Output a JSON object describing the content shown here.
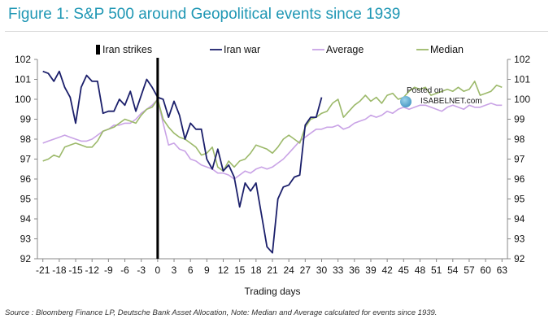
{
  "header": {
    "title": "Figure 1: S&P 500 around Geopolitical events since 1939"
  },
  "footer": {
    "source": "Source : Bloomberg Finance LP, Deutsche Bank Asset Allocation, Note: Median and Average calculated for events since 1939."
  },
  "watermark": {
    "line1": "Posted on",
    "line2": "ISABELNET.com"
  },
  "chart_data": {
    "type": "line",
    "title": "Figure 1: S&P 500 around Geopolitical events since 1939",
    "xlabel": "Trading days",
    "ylabel": "",
    "xlim": [
      -22,
      64
    ],
    "ylim": [
      92,
      102
    ],
    "legend_position": "top",
    "grid": false,
    "x_ticks": [
      -21,
      -18,
      -15,
      -12,
      -9,
      -6,
      -3,
      0,
      3,
      6,
      9,
      12,
      15,
      18,
      21,
      24,
      27,
      30,
      33,
      36,
      39,
      42,
      45,
      48,
      51,
      54,
      57,
      60,
      63
    ],
    "x_tick_labels": [
      "-21",
      "-18",
      "-15",
      "-12",
      "-9",
      "-6",
      "-3",
      "0",
      "3",
      "6",
      "9",
      "12",
      "15",
      "18",
      "21",
      "24",
      "27",
      "30",
      "33",
      "36",
      "39",
      "42",
      "45",
      "48",
      "51",
      "54",
      "57",
      "60",
      "63"
    ],
    "y_ticks": [
      92,
      93,
      94,
      95,
      96,
      97,
      98,
      99,
      100,
      101,
      102
    ],
    "y_tick_labels": [
      "92",
      "93",
      "94",
      "95",
      "96",
      "97",
      "98",
      "99",
      "100",
      "101",
      "102"
    ],
    "event_marker": {
      "name": "Iran strikes",
      "x": 0,
      "color": "#000000"
    },
    "series": [
      {
        "name": "Iran war",
        "color": "#1b1f6b",
        "x": [
          -21,
          -20,
          -19,
          -18,
          -17,
          -16,
          -15,
          -14,
          -13,
          -12,
          -11,
          -10,
          -9,
          -8,
          -7,
          -6,
          -5,
          -4,
          -3,
          -2,
          -1,
          0,
          1,
          2,
          3,
          4,
          5,
          6,
          7,
          8,
          9,
          10,
          11,
          12,
          13,
          14,
          15,
          16,
          17,
          18,
          19,
          20,
          21,
          22,
          23,
          24,
          25,
          26,
          27,
          28,
          29,
          30
        ],
        "y": [
          101.4,
          101.3,
          100.9,
          101.4,
          100.6,
          100.1,
          98.8,
          100.6,
          101.2,
          100.9,
          100.9,
          99.3,
          99.4,
          99.4,
          100.0,
          99.7,
          100.4,
          99.4,
          100.2,
          101.0,
          100.6,
          100.1,
          100.0,
          99.1,
          99.9,
          99.2,
          98.0,
          98.8,
          98.5,
          98.5,
          97.0,
          96.5,
          97.5,
          96.4,
          96.7,
          96.1,
          94.6,
          95.8,
          95.4,
          95.8,
          94.2,
          92.6,
          92.3,
          95.0,
          95.6,
          95.7,
          96.1,
          96.2,
          98.7,
          99.1,
          99.1,
          100.1
        ]
      },
      {
        "name": "Average",
        "color": "#c9a3e6",
        "x": [
          -21,
          -20,
          -19,
          -18,
          -17,
          -16,
          -15,
          -14,
          -13,
          -12,
          -11,
          -10,
          -9,
          -8,
          -7,
          -6,
          -5,
          -4,
          -3,
          -2,
          -1,
          0,
          1,
          2,
          3,
          4,
          5,
          6,
          7,
          8,
          9,
          10,
          11,
          12,
          13,
          14,
          15,
          16,
          17,
          18,
          19,
          20,
          21,
          22,
          23,
          24,
          25,
          26,
          27,
          28,
          29,
          30,
          31,
          32,
          33,
          34,
          35,
          36,
          37,
          38,
          39,
          40,
          41,
          42,
          43,
          44,
          45,
          46,
          47,
          48,
          49,
          50,
          51,
          52,
          53,
          54,
          55,
          56,
          57,
          58,
          59,
          60,
          61,
          62,
          63
        ],
        "y": [
          97.8,
          97.9,
          98.0,
          98.1,
          98.2,
          98.1,
          98.0,
          97.9,
          97.9,
          98.0,
          98.2,
          98.4,
          98.5,
          98.7,
          98.7,
          98.8,
          98.8,
          99.0,
          99.3,
          99.5,
          99.7,
          100.0,
          98.8,
          97.7,
          97.8,
          97.5,
          97.4,
          97.0,
          96.9,
          96.7,
          96.6,
          96.5,
          96.3,
          96.3,
          96.2,
          96.0,
          96.2,
          96.4,
          96.3,
          96.5,
          96.6,
          96.5,
          96.6,
          96.8,
          97.0,
          97.3,
          97.6,
          97.9,
          98.1,
          98.3,
          98.5,
          98.5,
          98.6,
          98.6,
          98.7,
          98.5,
          98.6,
          98.8,
          98.9,
          99.0,
          99.2,
          99.1,
          99.2,
          99.4,
          99.3,
          99.5,
          99.6,
          99.5,
          99.6,
          99.7,
          99.7,
          99.6,
          99.5,
          99.4,
          99.6,
          99.7,
          99.6,
          99.5,
          99.7,
          99.6,
          99.6,
          99.7,
          99.8,
          99.7,
          99.7
        ]
      },
      {
        "name": "Median",
        "color": "#9cb96a",
        "x": [
          -21,
          -20,
          -19,
          -18,
          -17,
          -16,
          -15,
          -14,
          -13,
          -12,
          -11,
          -10,
          -9,
          -8,
          -7,
          -6,
          -5,
          -4,
          -3,
          -2,
          -1,
          0,
          1,
          2,
          3,
          4,
          5,
          6,
          7,
          8,
          9,
          10,
          11,
          12,
          13,
          14,
          15,
          16,
          17,
          18,
          19,
          20,
          21,
          22,
          23,
          24,
          25,
          26,
          27,
          28,
          29,
          30,
          31,
          32,
          33,
          34,
          35,
          36,
          37,
          38,
          39,
          40,
          41,
          42,
          43,
          44,
          45,
          46,
          47,
          48,
          49,
          50,
          51,
          52,
          53,
          54,
          55,
          56,
          57,
          58,
          59,
          60,
          61,
          62,
          63
        ],
        "y": [
          96.9,
          97.0,
          97.2,
          97.1,
          97.6,
          97.7,
          97.8,
          97.7,
          97.6,
          97.6,
          97.9,
          98.4,
          98.5,
          98.6,
          98.8,
          99.0,
          98.9,
          98.8,
          99.2,
          99.5,
          99.6,
          100.0,
          99.0,
          98.6,
          98.3,
          98.1,
          98.0,
          97.8,
          97.6,
          97.2,
          97.3,
          97.6,
          96.6,
          96.4,
          96.9,
          96.6,
          96.9,
          97.0,
          97.3,
          97.7,
          97.6,
          97.5,
          97.3,
          97.6,
          98.0,
          98.2,
          98.0,
          97.8,
          98.6,
          99.0,
          99.1,
          99.3,
          99.4,
          99.8,
          100.0,
          99.1,
          99.4,
          99.7,
          99.9,
          100.2,
          99.9,
          100.1,
          99.8,
          100.2,
          100.3,
          100.0,
          100.1,
          100.4,
          100.6,
          100.5,
          100.6,
          100.2,
          100.3,
          100.4,
          100.5,
          100.4,
          100.6,
          100.4,
          100.5,
          100.9,
          100.2,
          100.3,
          100.4,
          100.7,
          100.6
        ]
      }
    ]
  }
}
